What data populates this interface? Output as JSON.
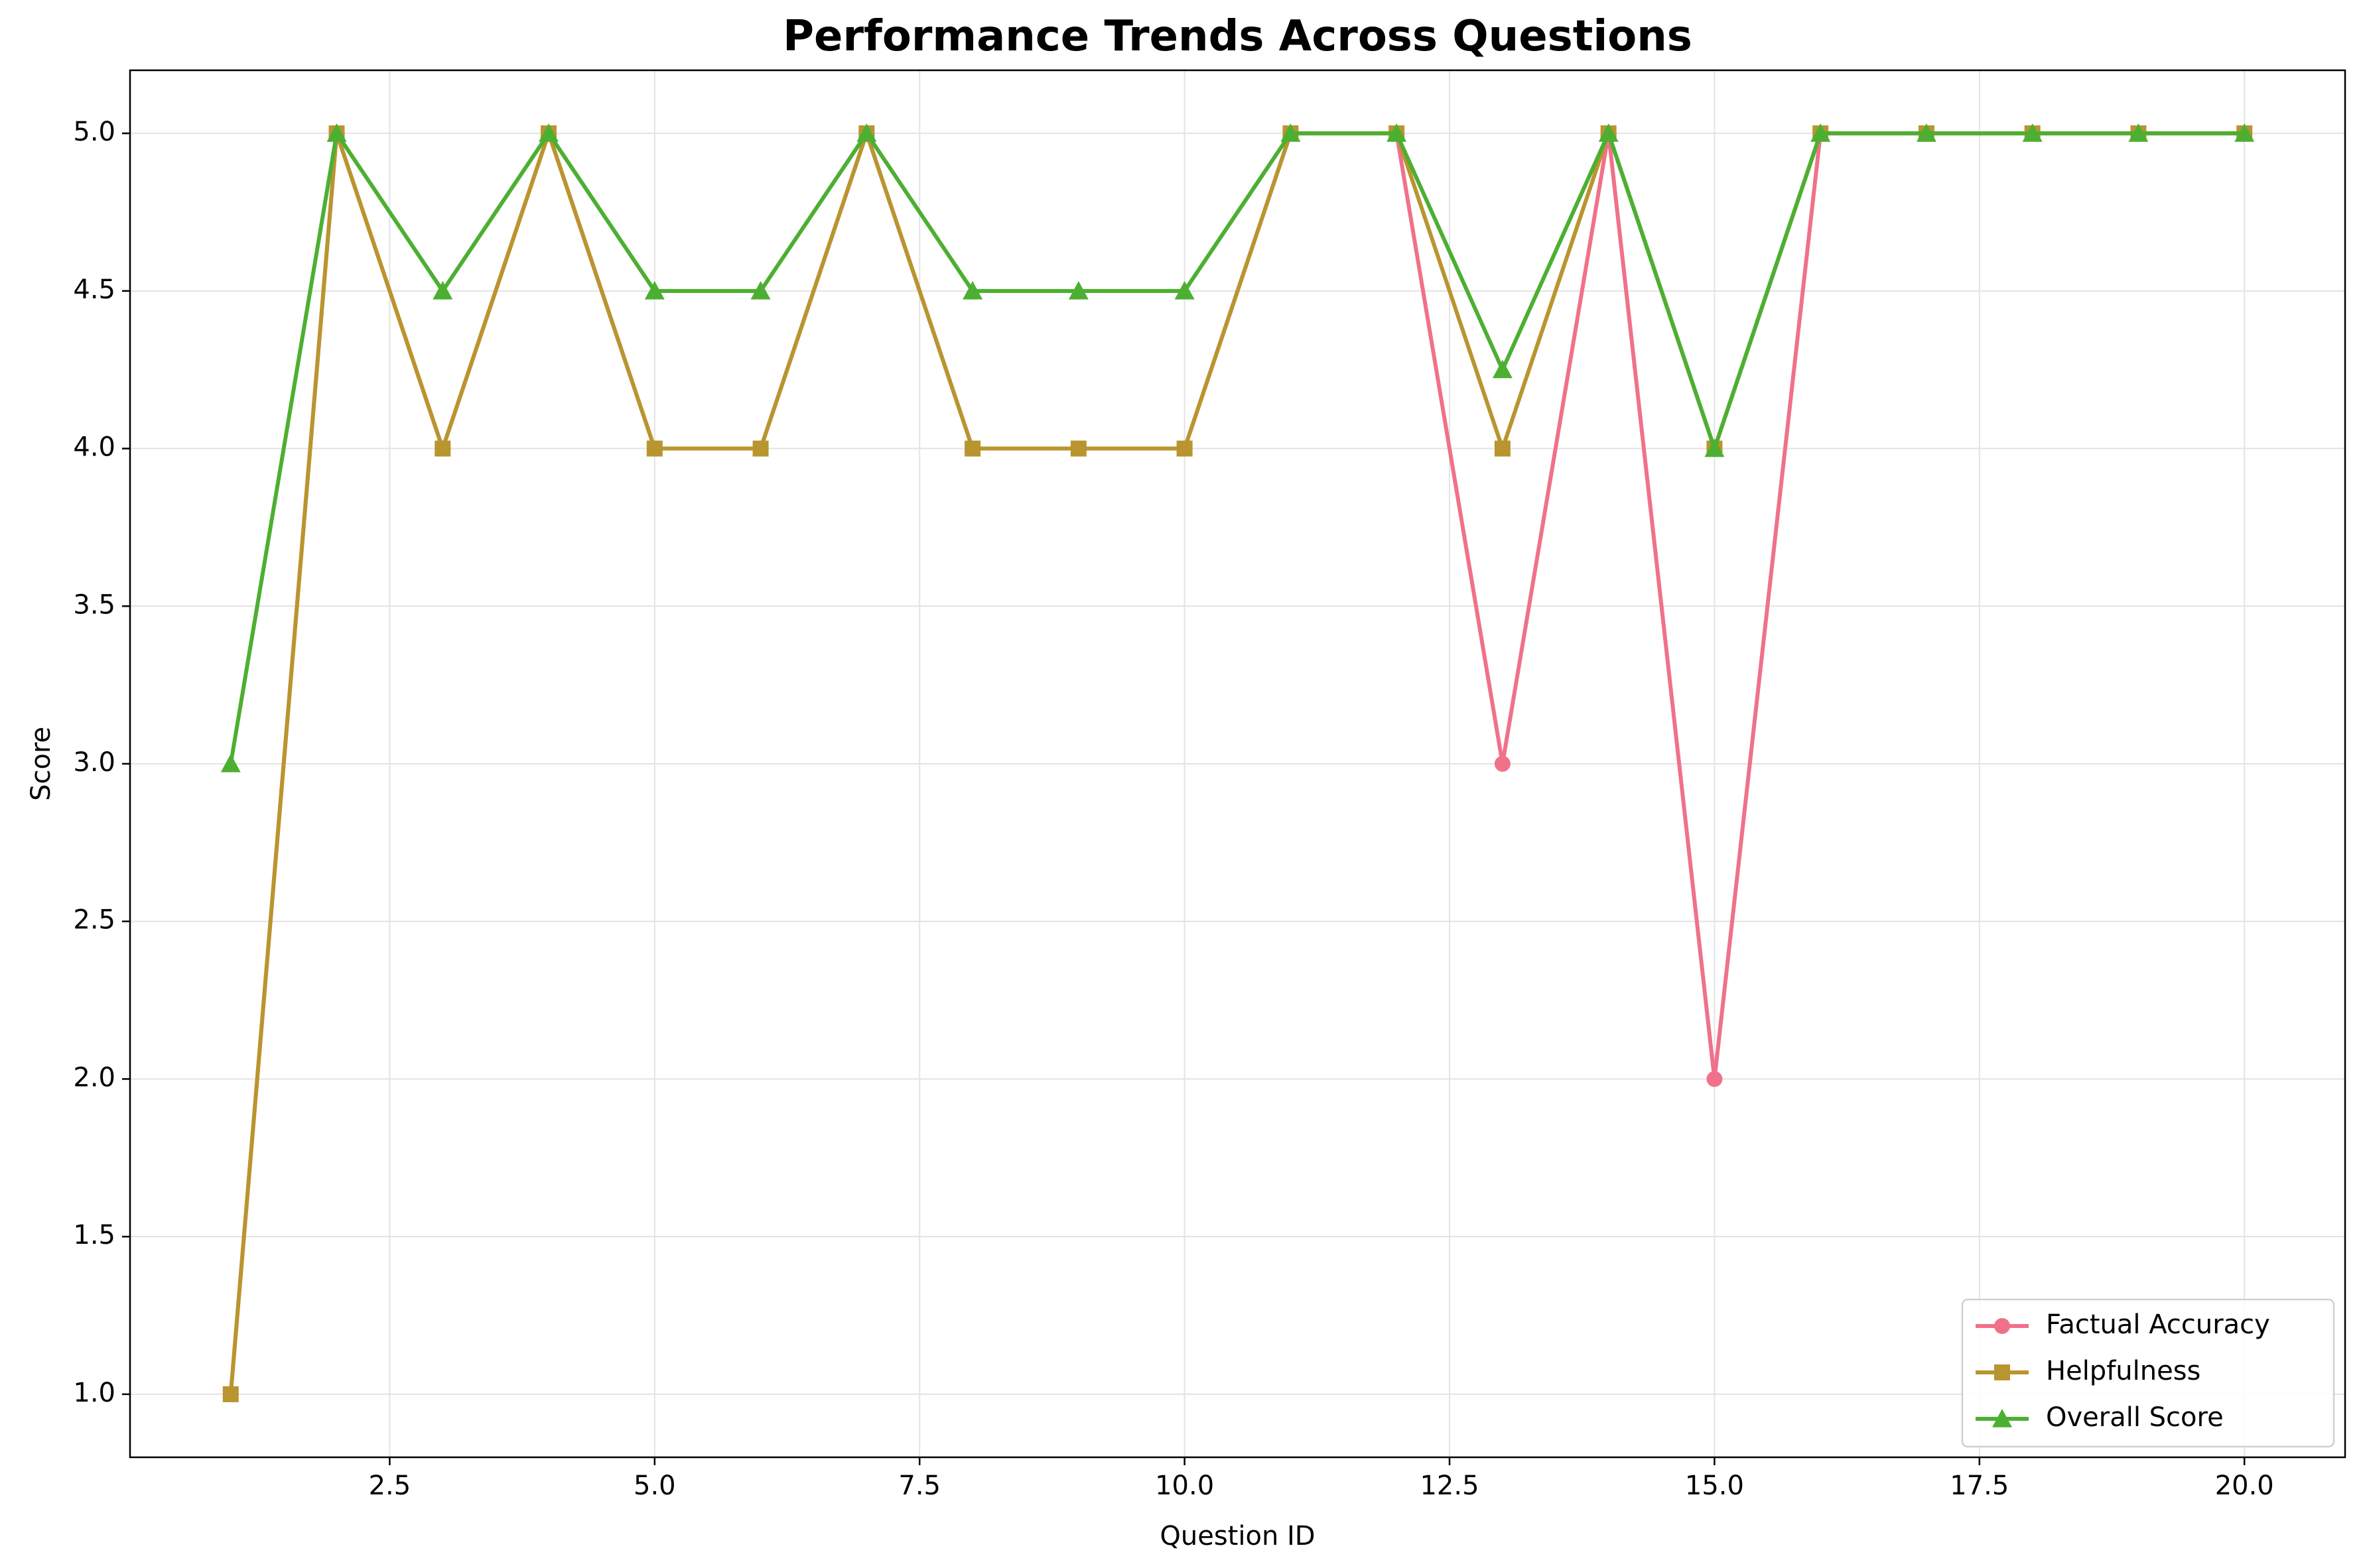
{
  "chart_data": {
    "type": "line",
    "title": "Performance Trends Across Questions",
    "xlabel": "Question ID",
    "ylabel": "Score",
    "x": [
      1,
      2,
      3,
      4,
      5,
      6,
      7,
      8,
      9,
      10,
      11,
      12,
      13,
      14,
      15,
      16,
      17,
      18,
      19,
      20
    ],
    "xlim": [
      0.05,
      20.95
    ],
    "ylim": [
      0.8,
      5.2
    ],
    "xticks": [
      2.5,
      5.0,
      7.5,
      10.0,
      12.5,
      15.0,
      17.5,
      20.0
    ],
    "xtick_labels": [
      "2.5",
      "5.0",
      "7.5",
      "10.0",
      "12.5",
      "15.0",
      "17.5",
      "20.0"
    ],
    "yticks": [
      1.0,
      1.5,
      2.0,
      2.5,
      3.0,
      3.5,
      4.0,
      4.5,
      5.0
    ],
    "ytick_labels": [
      "1.0",
      "1.5",
      "2.0",
      "2.5",
      "3.0",
      "3.5",
      "4.0",
      "4.5",
      "5.0"
    ],
    "grid": true,
    "legend_position": "lower-right",
    "series": [
      {
        "name": "Factual Accuracy",
        "marker": "circle",
        "color": "#f0718a",
        "values": [
          1,
          5,
          4,
          5,
          4,
          4,
          5,
          4,
          4,
          4,
          5,
          5,
          3,
          5,
          2,
          5,
          5,
          5,
          5,
          5
        ]
      },
      {
        "name": "Helpfulness",
        "marker": "square",
        "color": "#b9952f",
        "values": [
          1,
          5,
          4,
          5,
          4,
          4,
          5,
          4,
          4,
          4,
          5,
          5,
          4,
          5,
          4,
          5,
          5,
          5,
          5,
          5
        ]
      },
      {
        "name": "Overall Score",
        "marker": "triangle",
        "color": "#4daf32",
        "values": [
          3,
          5,
          4.5,
          5,
          4.5,
          4.5,
          5,
          4.5,
          4.5,
          4.5,
          5,
          5,
          4.25,
          5,
          4,
          5,
          5,
          5,
          5,
          5
        ]
      }
    ]
  }
}
